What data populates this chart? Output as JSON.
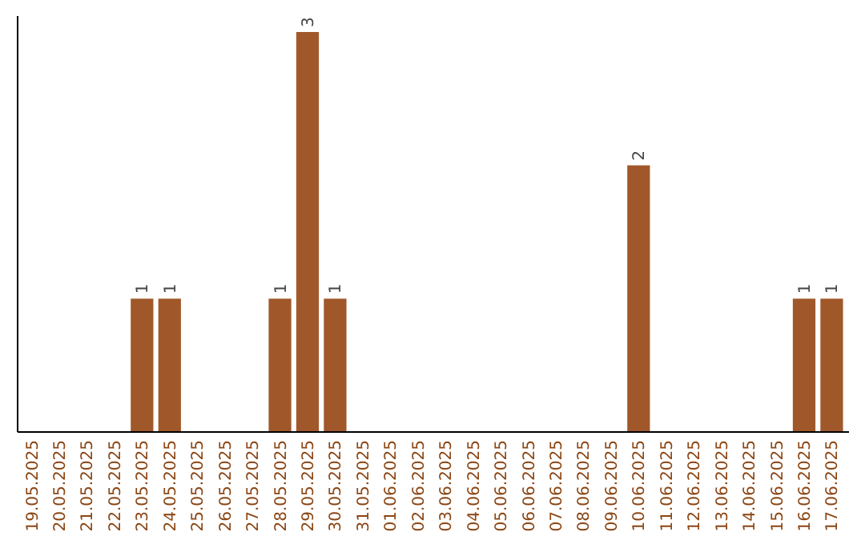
{
  "chart_data": {
    "type": "bar",
    "categories": [
      "19.05.2025",
      "20.05.2025",
      "21.05.2025",
      "22.05.2025",
      "23.05.2025",
      "24.05.2025",
      "25.05.2025",
      "26.05.2025",
      "27.05.2025",
      "28.05.2025",
      "29.05.2025",
      "30.05.2025",
      "31.05.2025",
      "01.06.2025",
      "02.06.2025",
      "03.06.2025",
      "04.06.2025",
      "05.06.2025",
      "06.06.2025",
      "07.06.2025",
      "08.06.2025",
      "09.06.2025",
      "10.06.2025",
      "11.06.2025",
      "12.06.2025",
      "13.06.2025",
      "14.06.2025",
      "15.06.2025",
      "16.06.2025",
      "17.06.2025"
    ],
    "values": [
      0,
      0,
      0,
      0,
      1,
      1,
      0,
      0,
      0,
      1,
      3,
      1,
      0,
      0,
      0,
      0,
      0,
      0,
      0,
      0,
      0,
      0,
      2,
      0,
      0,
      0,
      0,
      0,
      1,
      1
    ],
    "value_labels": [
      null,
      null,
      null,
      null,
      "1",
      "1",
      null,
      null,
      null,
      "1",
      "3",
      "1",
      null,
      null,
      null,
      null,
      null,
      null,
      null,
      null,
      null,
      null,
      "2",
      null,
      null,
      null,
      null,
      null,
      "1",
      "1"
    ],
    "color": "#a0582a",
    "tick_labels": "x"
  }
}
